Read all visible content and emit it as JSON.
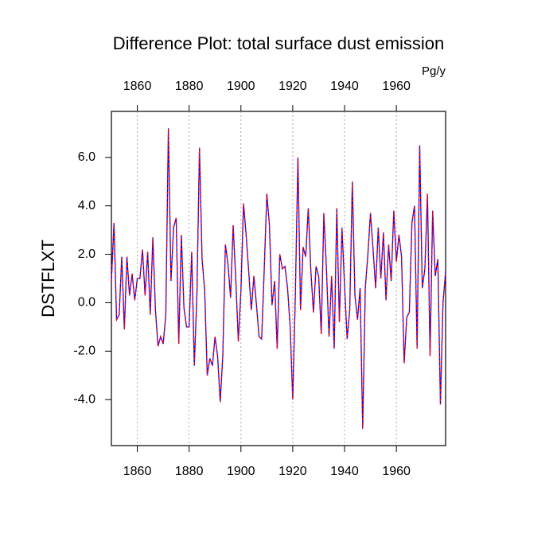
{
  "chart_data": {
    "type": "line",
    "title": "Difference Plot: total surface dust emission",
    "units": "Pg/y",
    "y_label": "DSTFLXT",
    "x": [
      1850,
      1851,
      1852,
      1853,
      1854,
      1855,
      1856,
      1857,
      1858,
      1859,
      1860,
      1861,
      1862,
      1863,
      1864,
      1865,
      1866,
      1867,
      1868,
      1869,
      1870,
      1871,
      1872,
      1873,
      1874,
      1875,
      1876,
      1877,
      1878,
      1879,
      1880,
      1881,
      1882,
      1883,
      1884,
      1885,
      1886,
      1887,
      1888,
      1889,
      1890,
      1891,
      1892,
      1893,
      1894,
      1895,
      1896,
      1897,
      1898,
      1899,
      1900,
      1901,
      1902,
      1903,
      1904,
      1905,
      1906,
      1907,
      1908,
      1909,
      1910,
      1911,
      1912,
      1913,
      1914,
      1915,
      1916,
      1917,
      1918,
      1919,
      1920,
      1921,
      1922,
      1923,
      1924,
      1925,
      1926,
      1927,
      1928,
      1929,
      1930,
      1931,
      1932,
      1933,
      1934,
      1935,
      1936,
      1937,
      1938,
      1939,
      1940,
      1941,
      1942,
      1943,
      1944,
      1945,
      1946,
      1947,
      1948,
      1949,
      1950,
      1951,
      1952,
      1953,
      1954,
      1955,
      1956,
      1957,
      1958,
      1959,
      1960,
      1961,
      1962,
      1963,
      1964,
      1965,
      1966,
      1967,
      1968,
      1969,
      1970,
      1971,
      1972,
      1973,
      1974,
      1975,
      1976,
      1977,
      1978,
      1979
    ],
    "series": [
      {
        "color": "blue",
        "dash_color": "red",
        "values": [
          0.9,
          3.3,
          -0.7,
          -0.5,
          1.9,
          -1.1,
          1.9,
          0.3,
          1.2,
          0.1,
          1.0,
          1.0,
          2.2,
          0.3,
          2.1,
          -0.5,
          2.7,
          -0.3,
          -1.8,
          -1.4,
          -1.7,
          -0.5,
          7.2,
          0.9,
          3.1,
          3.5,
          -1.7,
          2.8,
          -0.2,
          -1.0,
          -1.0,
          2.1,
          -2.6,
          0.3,
          6.4,
          1.8,
          0.5,
          -3.0,
          -2.3,
          -2.6,
          -1.4,
          -2.2,
          -4.1,
          -2.2,
          2.4,
          1.6,
          0.2,
          3.2,
          1.0,
          -1.6,
          0.5,
          4.1,
          2.8,
          1.3,
          -0.3,
          1.1,
          -0.1,
          -1.4,
          -1.5,
          1.4,
          4.5,
          3.2,
          -0.1,
          0.9,
          -1.9,
          2.0,
          1.4,
          1.5,
          0.6,
          -1.0,
          -4.0,
          0.3,
          6.0,
          -0.3,
          2.3,
          1.9,
          3.9,
          1.3,
          -0.4,
          1.5,
          1.1,
          -1.3,
          3.7,
          1.4,
          -1.4,
          1.1,
          -1.9,
          3.9,
          -0.8,
          3.1,
          0.7,
          -1.5,
          -0.3,
          5.0,
          0.3,
          -0.7,
          0.6,
          -5.2,
          0.6,
          2.0,
          3.7,
          2.2,
          0.6,
          3.1,
          1.0,
          2.9,
          0.1,
          2.4,
          0.9,
          3.8,
          1.7,
          2.8,
          1.9,
          -2.5,
          -0.6,
          -0.4,
          3.3,
          4.0,
          -1.9,
          6.5,
          0.6,
          1.4,
          4.5,
          -2.2,
          3.8,
          1.1,
          1.8,
          -4.2,
          0.0,
          1.3
        ]
      }
    ],
    "xlim": [
      1850,
      1979
    ],
    "xticks": [
      1860,
      1880,
      1900,
      1920,
      1940,
      1960
    ],
    "xtick_color_bottom": "red",
    "xtick_color_top": "blue",
    "ylim": [
      -5.9,
      7.9
    ],
    "yticks": [
      {
        "value": -4,
        "label": "-4.0"
      },
      {
        "value": -2,
        "label": "-2.0"
      },
      {
        "value": 0,
        "label": "0.0"
      },
      {
        "value": 2,
        "label": "2.0"
      },
      {
        "value": 4,
        "label": "4.0"
      },
      {
        "value": 6,
        "label": "6.0"
      }
    ],
    "grid": true
  }
}
